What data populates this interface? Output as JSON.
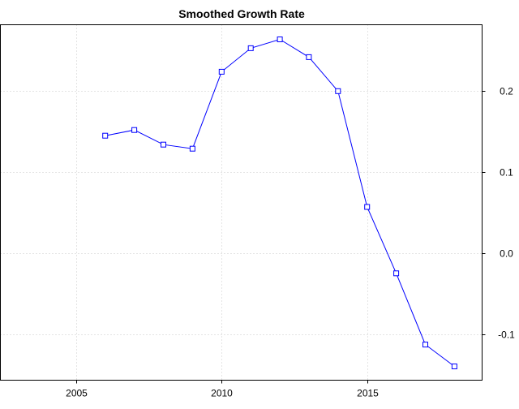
{
  "chart_data": {
    "type": "line",
    "title": "Smoothed Growth Rate",
    "xlabel": "",
    "ylabel": "",
    "x_ticks": [
      2005,
      2010,
      2015
    ],
    "y_ticks": [
      -0.1,
      0.0,
      0.1,
      0.2
    ],
    "y_tick_labels": [
      "-0.1",
      "0.0",
      "0.1",
      "0.2"
    ],
    "y_axis_side": "right",
    "xlim": [
      2002.4,
      2018.95
    ],
    "ylim": [
      -0.157,
      0.282
    ],
    "grid": true,
    "series": [
      {
        "x": [
          2006,
          2007,
          2008,
          2009,
          2010,
          2011,
          2012,
          2013,
          2014,
          2015,
          2016,
          2017,
          2018
        ],
        "values": [
          0.145,
          0.152,
          0.134,
          0.129,
          0.224,
          0.253,
          0.264,
          0.242,
          0.2,
          0.057,
          -0.025,
          -0.113,
          -0.14
        ],
        "color": "#0000ff",
        "marker": "square-open"
      }
    ]
  }
}
